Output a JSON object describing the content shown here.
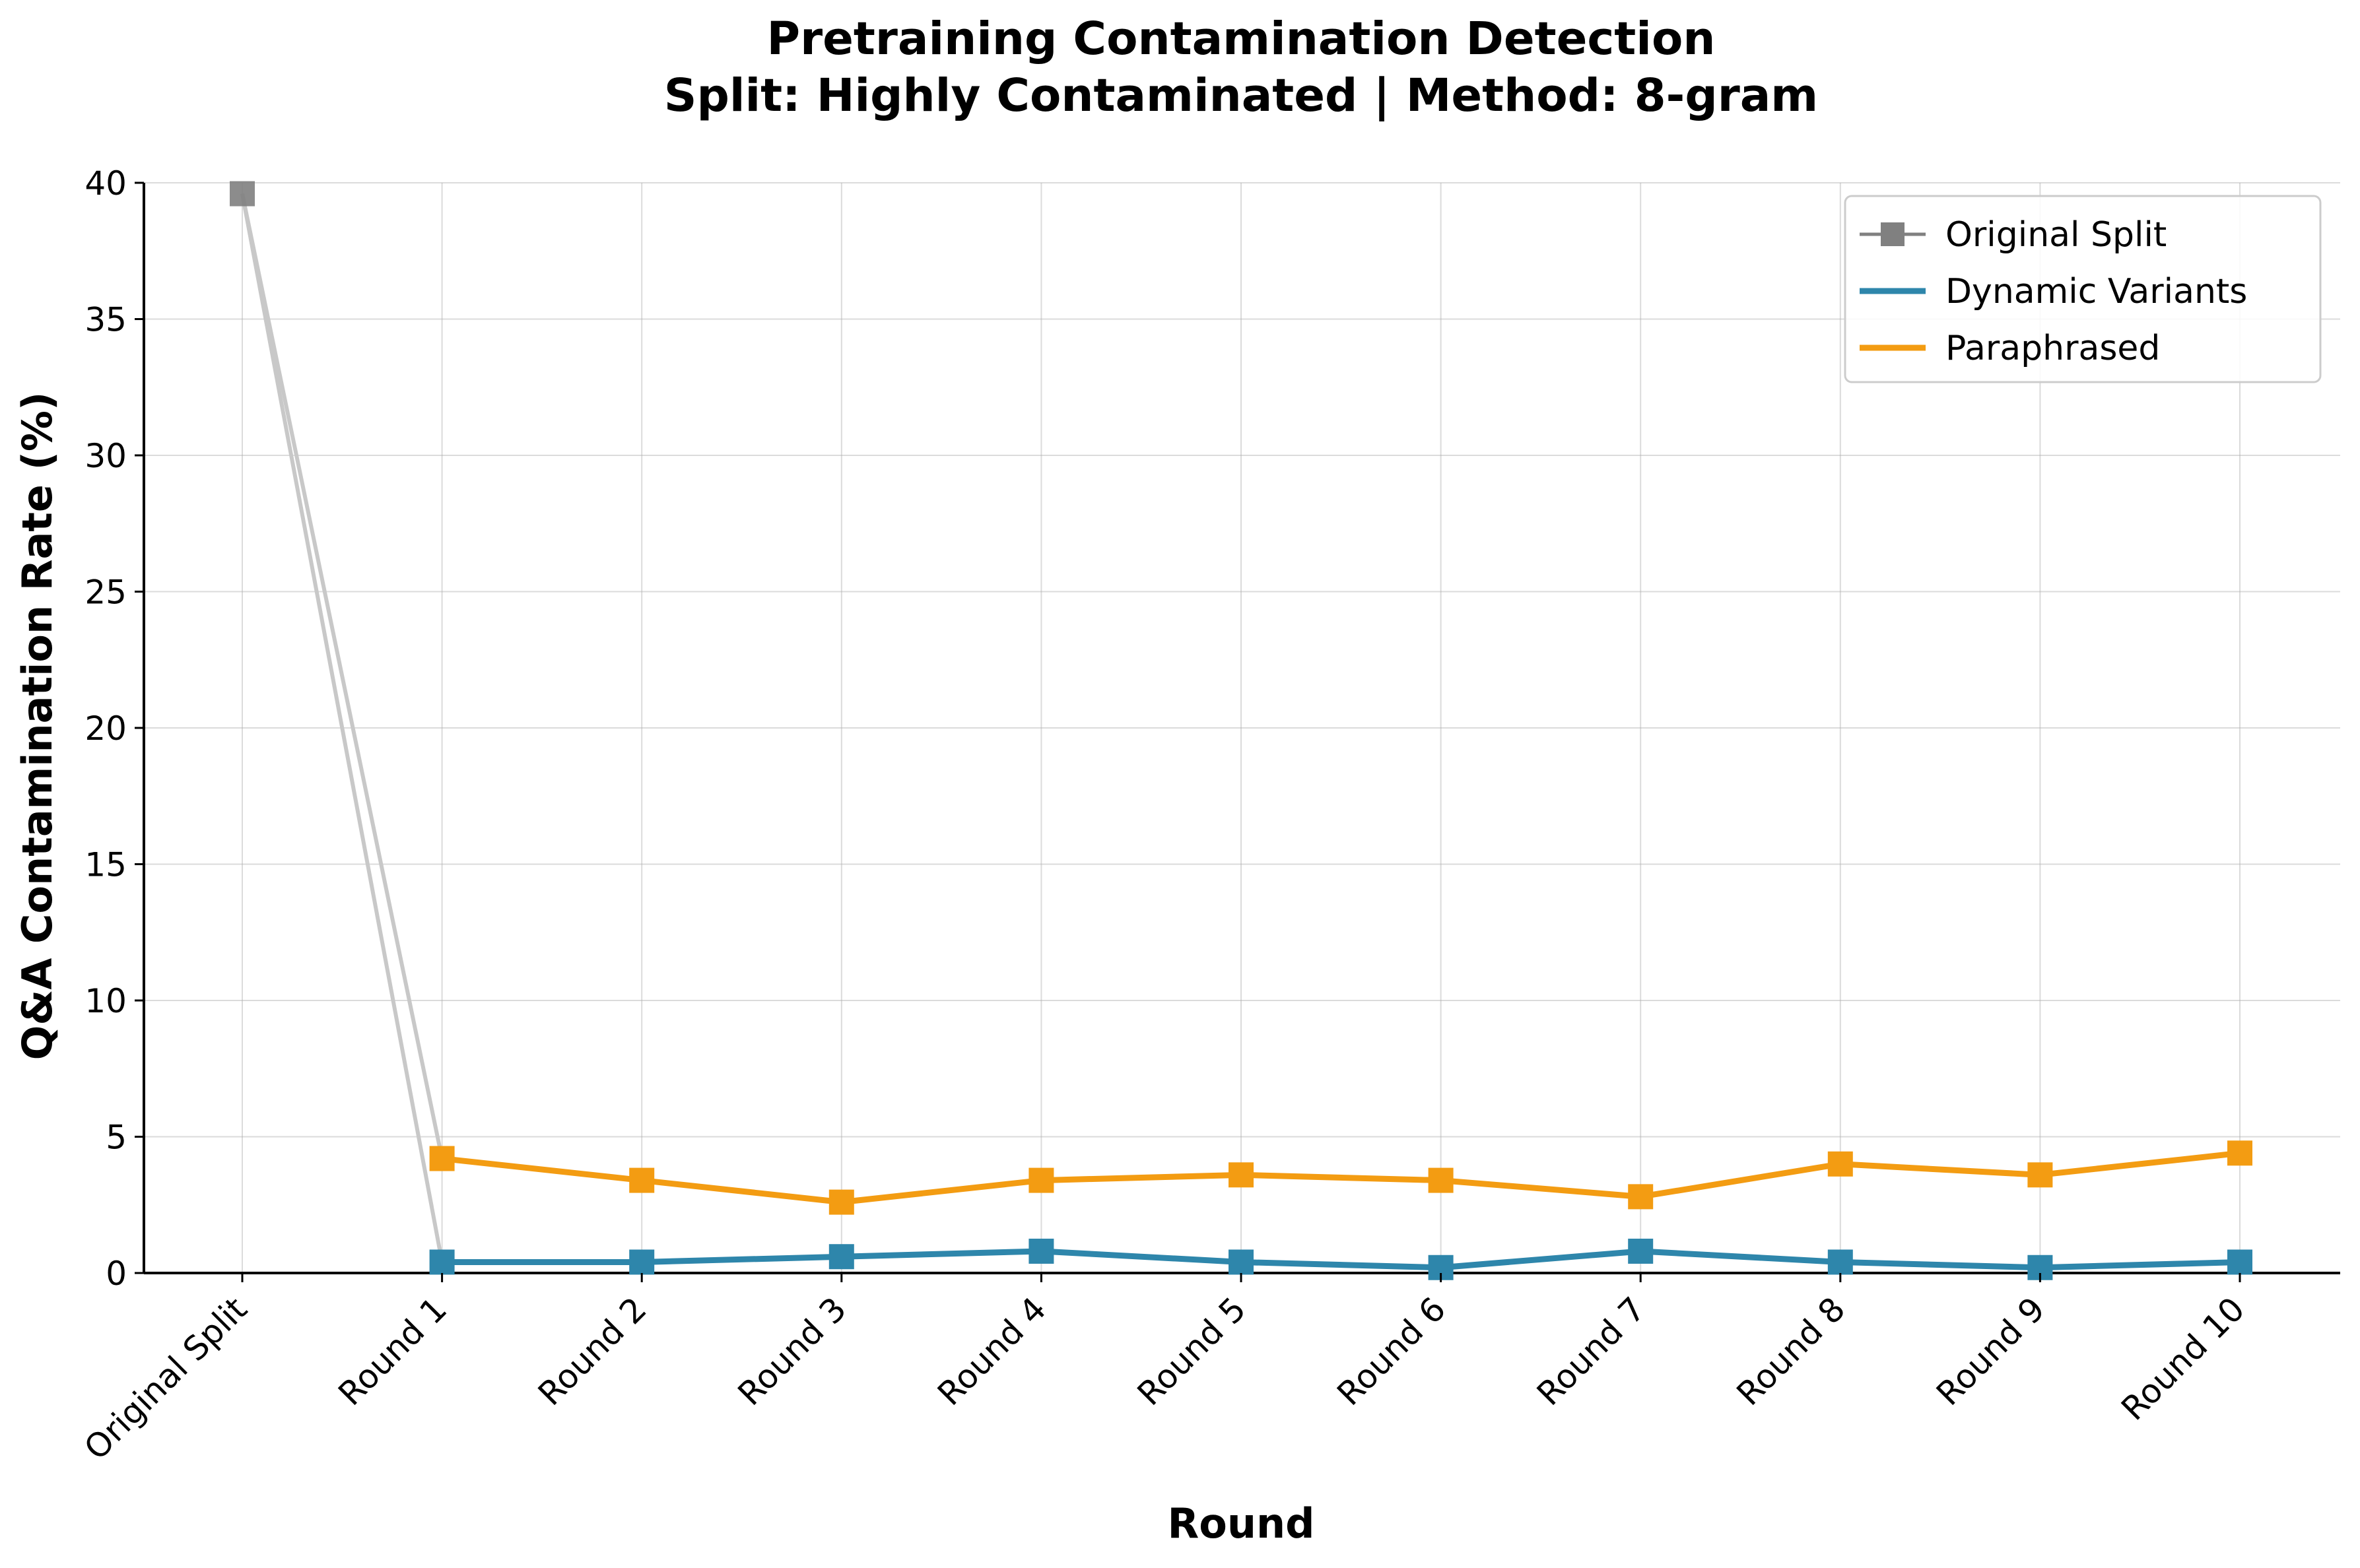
{
  "chart_data": {
    "type": "line",
    "title": "Pretraining Contamination Detection",
    "subtitle": "Split: Highly Contaminated | Method: 8-gram",
    "xlabel": "Round",
    "ylabel": "Q&A Contamination Rate (%)",
    "categories": [
      "Original Split",
      "Round 1",
      "Round 2",
      "Round 3",
      "Round 4",
      "Round 5",
      "Round 6",
      "Round 7",
      "Round 8",
      "Round 9",
      "Round 10"
    ],
    "ylim": [
      0,
      40
    ],
    "yticks": [
      "0",
      "5",
      "10",
      "15",
      "20",
      "25",
      "30",
      "35",
      "40"
    ],
    "grid": true,
    "legend_position": "top-right",
    "series": [
      {
        "name": "Original Split",
        "color": "#808080",
        "values": [
          39.6,
          null,
          null,
          null,
          null,
          null,
          null,
          null,
          null,
          null,
          null
        ]
      },
      {
        "name": "Dynamic Variants",
        "color": "#2e86ab",
        "values": [
          null,
          0.4,
          0.4,
          0.6,
          0.8,
          0.4,
          0.2,
          0.8,
          0.4,
          0.2,
          0.4
        ]
      },
      {
        "name": "Paraphrased",
        "color": "#f39c12",
        "values": [
          null,
          4.2,
          3.4,
          2.6,
          3.4,
          3.6,
          3.4,
          2.8,
          4.0,
          3.6,
          4.4
        ]
      }
    ],
    "connectors": {
      "color": "#c8c8c8",
      "from_category": 0,
      "to_category": 1
    }
  }
}
